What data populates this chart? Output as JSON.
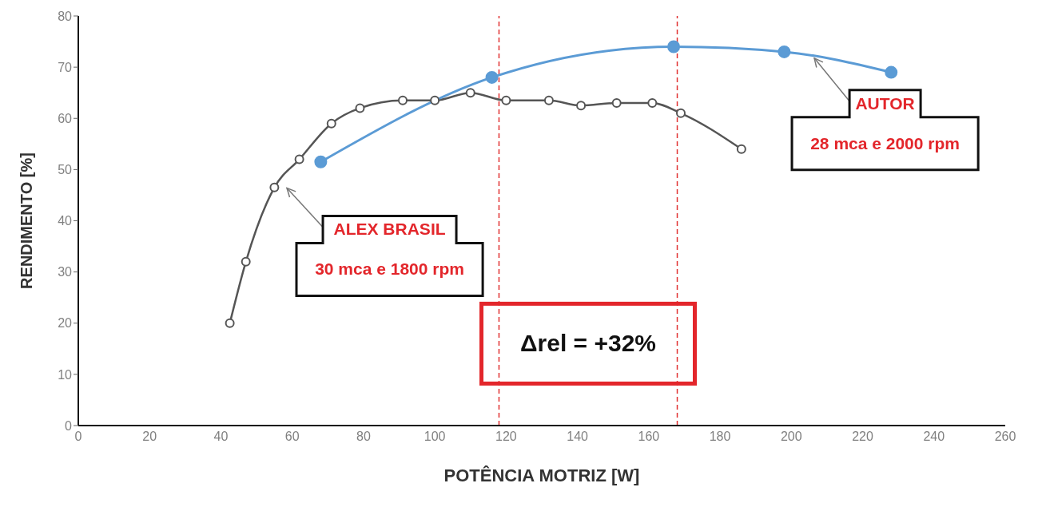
{
  "chart_data": {
    "type": "line",
    "xlabel": "POTÊNCIA MOTRIZ [W]",
    "ylabel": "RENDIMENTO [%]",
    "xlim": [
      0,
      260
    ],
    "xticks": [
      0,
      20,
      40,
      60,
      80,
      100,
      120,
      140,
      160,
      180,
      200,
      220,
      240,
      260
    ],
    "ylim": [
      0,
      80
    ],
    "yticks": [
      0,
      10,
      20,
      30,
      40,
      50,
      60,
      70,
      80
    ],
    "marker": "circle",
    "line_style": "solid",
    "series": [
      {
        "color": "#555555",
        "x": [
          42.5,
          47,
          55,
          62,
          71,
          79,
          91,
          100,
          110,
          120,
          132,
          141,
          151,
          161,
          169,
          186
        ],
        "values": [
          20,
          32,
          46.5,
          52,
          59,
          62,
          63.5,
          63.5,
          65,
          63.5,
          63.5,
          62.5,
          63,
          63,
          61,
          54
        ]
      },
      {
        "color": "#5b9bd5",
        "x": [
          68,
          116,
          167,
          198,
          228
        ],
        "values": [
          51.5,
          68,
          74,
          73,
          69
        ]
      }
    ],
    "ref_lines": [
      {
        "axis": "x",
        "value": 118,
        "color": "#e03030",
        "line_style": "dashed"
      },
      {
        "axis": "x",
        "value": 168,
        "color": "#e03030",
        "line_style": "dashed"
      }
    ],
    "annotations": [
      "ALEX BRASIL\n30 mca e 1800 rpm",
      "AUTOR\n28 mca e 2000 rpm",
      "Δrel = +32%"
    ]
  }
}
